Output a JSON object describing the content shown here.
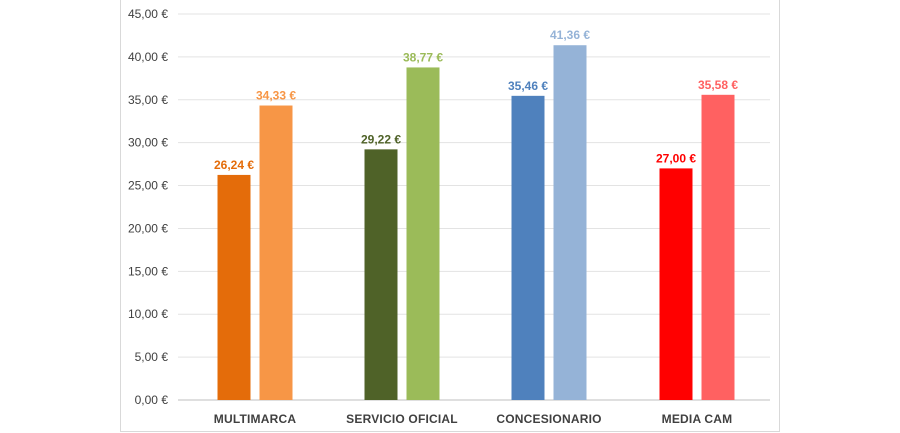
{
  "chart_data": {
    "type": "bar",
    "title": "",
    "xlabel": "",
    "ylabel": "",
    "ylim": [
      0,
      45
    ],
    "yticks": [
      0,
      5,
      10,
      15,
      20,
      25,
      30,
      35,
      40,
      45
    ],
    "ytick_labels": [
      "0,00 €",
      "5,00 €",
      "10,00 €",
      "15,00 €",
      "20,00 €",
      "25,00 €",
      "30,00 €",
      "35,00 €",
      "40,00 €",
      "45,00 €"
    ],
    "grid": true,
    "legend": "none",
    "categories": [
      "MULTIMARCA",
      "SERVICIO OFICIAL",
      "CONCESIONARIO",
      "MEDIA CAM"
    ],
    "series": [
      {
        "values": [
          26.24,
          29.22,
          35.46,
          27.0
        ],
        "labels": [
          "26,24 €",
          "29,22 €",
          "35,46 €",
          "27,00 €"
        ],
        "colors": [
          "#e46c0a",
          "#4f6228",
          "#4f81bd",
          "#ff0000"
        ]
      },
      {
        "values": [
          34.33,
          38.77,
          41.36,
          35.58
        ],
        "labels": [
          "34,33 €",
          "38,77 €",
          "41,36 €",
          "35,58 €"
        ],
        "colors": [
          "#f79646",
          "#9bbb59",
          "#95b3d7",
          "#ff6161"
        ]
      }
    ]
  }
}
